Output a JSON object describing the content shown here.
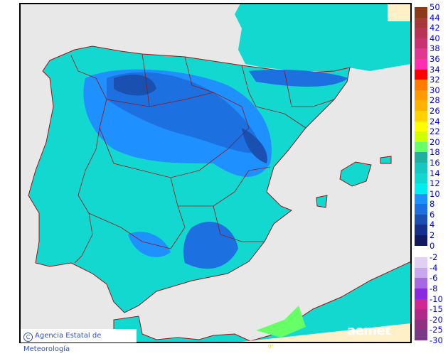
{
  "legend": {
    "items": [
      {
        "label": "50",
        "color": "#8b3a1a"
      },
      {
        "label": "44",
        "color": "#a83838"
      },
      {
        "label": "42",
        "color": "#b83358"
      },
      {
        "label": "40",
        "color": "#c83370"
      },
      {
        "label": "38",
        "color": "#e03890"
      },
      {
        "label": "36",
        "color": "#ff30b0"
      },
      {
        "label": "34",
        "color": "#ff0000"
      },
      {
        "label": "32",
        "color": "#ff7a00"
      },
      {
        "label": "30",
        "color": "#ff9a00"
      },
      {
        "label": "28",
        "color": "#ffb300"
      },
      {
        "label": "26",
        "color": "#ffd200"
      },
      {
        "label": "24",
        "color": "#ffff00"
      },
      {
        "label": "22",
        "color": "#d0ff00"
      },
      {
        "label": "20",
        "color": "#66ff66"
      },
      {
        "label": "18",
        "color": "#20b0a0"
      },
      {
        "label": "16",
        "color": "#16c8c0"
      },
      {
        "label": "14",
        "color": "#12d8d0"
      },
      {
        "label": "12",
        "color": "#00eeee"
      },
      {
        "label": "10",
        "color": "#1e90ff"
      },
      {
        "label": "8",
        "color": "#1c70e0"
      },
      {
        "label": "6",
        "color": "#1a50b0"
      },
      {
        "label": "4",
        "color": "#15308a"
      },
      {
        "label": "2",
        "color": "#101860"
      },
      {
        "label": "0",
        "color": ""
      },
      {
        "label": "-2",
        "color": "#e0d0f4"
      },
      {
        "label": "-4",
        "color": "#c8a8ec"
      },
      {
        "label": "-6",
        "color": "#a868e0"
      },
      {
        "label": "-8",
        "color": "#8a2ae0"
      },
      {
        "label": "-10",
        "color": "#d02890"
      },
      {
        "label": "-15",
        "color": "#b02888"
      },
      {
        "label": "-20",
        "color": "#903080"
      },
      {
        "label": "-25",
        "color": "#7a3a88"
      },
      {
        "label": "-30",
        "color": ""
      }
    ]
  },
  "credit": {
    "symbol": "C",
    "text": "Agencia Estatal de Meteorología"
  },
  "brand": "aemet",
  "longitude_label": "0°",
  "colors": {
    "sea": "#e8e8e8",
    "land_default": "#12d8d0",
    "border": "#a01010",
    "outside": "#fff0c8"
  }
}
